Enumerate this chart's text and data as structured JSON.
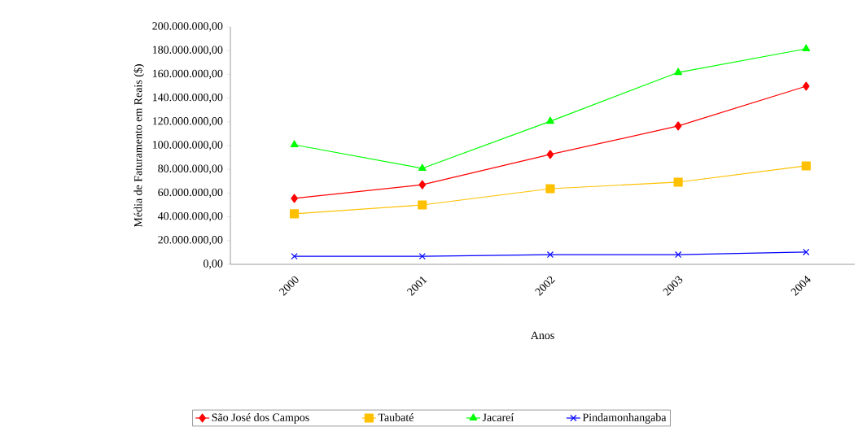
{
  "chart_data": {
    "type": "line",
    "xlabel": "Anos",
    "ylabel": "Média de Faturamento em Reais ($)",
    "categories": [
      "2000",
      "2001",
      "2002",
      "2003",
      "2004"
    ],
    "series": [
      {
        "name": "São José dos Campos",
        "color": "#ff0000",
        "marker": "diamond",
        "values": [
          55500000,
          67000000,
          92500000,
          116500000,
          150000000
        ]
      },
      {
        "name": "Taubaté",
        "color": "#ffc000",
        "marker": "square",
        "values": [
          42500000,
          50000000,
          63700000,
          69200000,
          82900000
        ]
      },
      {
        "name": "Jacareí",
        "color": "#00ff00",
        "marker": "triangle",
        "values": [
          100700000,
          80800000,
          120500000,
          161600000,
          181500000
        ]
      },
      {
        "name": "Pindamonhangaba",
        "color": "#0000ff",
        "marker": "cross",
        "values": [
          6800000,
          6800000,
          8200000,
          8200000,
          10300000
        ]
      }
    ],
    "ylim": [
      0,
      200000000
    ],
    "yticks": [
      {
        "value": 0,
        "label": "0,00"
      },
      {
        "value": 20000000,
        "label": "20.000.000,00"
      },
      {
        "value": 40000000,
        "label": "40.000.000,00"
      },
      {
        "value": 60000000,
        "label": "60.000.000,00"
      },
      {
        "value": 80000000,
        "label": "80.000.000,00"
      },
      {
        "value": 100000000,
        "label": "100.000.000,00"
      },
      {
        "value": 120000000,
        "label": "120.000.000,00"
      },
      {
        "value": 140000000,
        "label": "140.000.000,00"
      },
      {
        "value": 160000000,
        "label": "160.000.000,00"
      },
      {
        "value": 180000000,
        "label": "180.000.000,00"
      },
      {
        "value": 200000000,
        "label": "200.000.000,00"
      }
    ],
    "legend": "bottom",
    "grid": false,
    "line_style": "solid"
  }
}
